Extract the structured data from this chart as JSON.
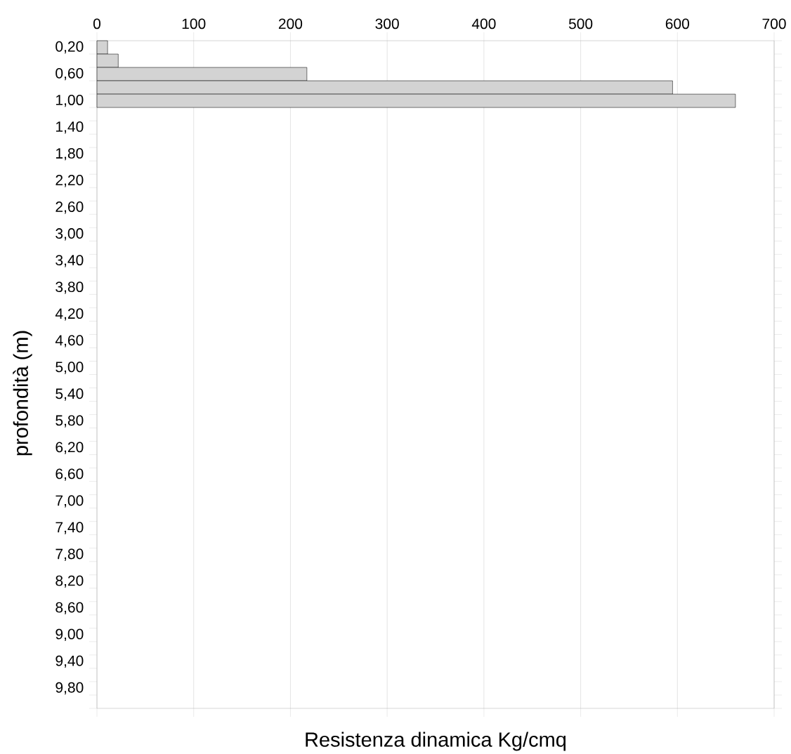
{
  "chart_data": {
    "type": "bar",
    "orientation": "horizontal",
    "xlabel": "Resistenza dinamica Kg/cmq",
    "ylabel": "profondità (m)",
    "categories": [
      "0,20",
      null,
      "0,60",
      null,
      "1,00",
      null,
      "1,40",
      null,
      "1,80",
      null,
      "2,20",
      null,
      "2,60",
      null,
      "3,00",
      null,
      "3,40",
      null,
      "3,80",
      null,
      "4,20",
      null,
      "4,60",
      null,
      "5,00",
      null,
      "5,40",
      null,
      "5,80",
      null,
      "6,20",
      null,
      "6,60",
      null,
      "7,00",
      null,
      "7,40",
      null,
      "7,80",
      null,
      "8,20",
      null,
      "8,60",
      null,
      "9,00",
      null,
      "9,40",
      null,
      "9,80",
      null
    ],
    "values": [
      11,
      22,
      217,
      595,
      660,
      null,
      null,
      null,
      null,
      null,
      null,
      null,
      null,
      null,
      null,
      null,
      null,
      null,
      null,
      null,
      null,
      null,
      null,
      null,
      null,
      null,
      null,
      null,
      null,
      null,
      null,
      null,
      null,
      null,
      null,
      null,
      null,
      null,
      null,
      null,
      null,
      null,
      null,
      null,
      null,
      null,
      null,
      null,
      null,
      null
    ],
    "color": "#d3d3d3",
    "xlim": [
      0,
      700
    ],
    "xticks": [
      0,
      100,
      200,
      300,
      400,
      500,
      600,
      700
    ],
    "grid": "x"
  }
}
